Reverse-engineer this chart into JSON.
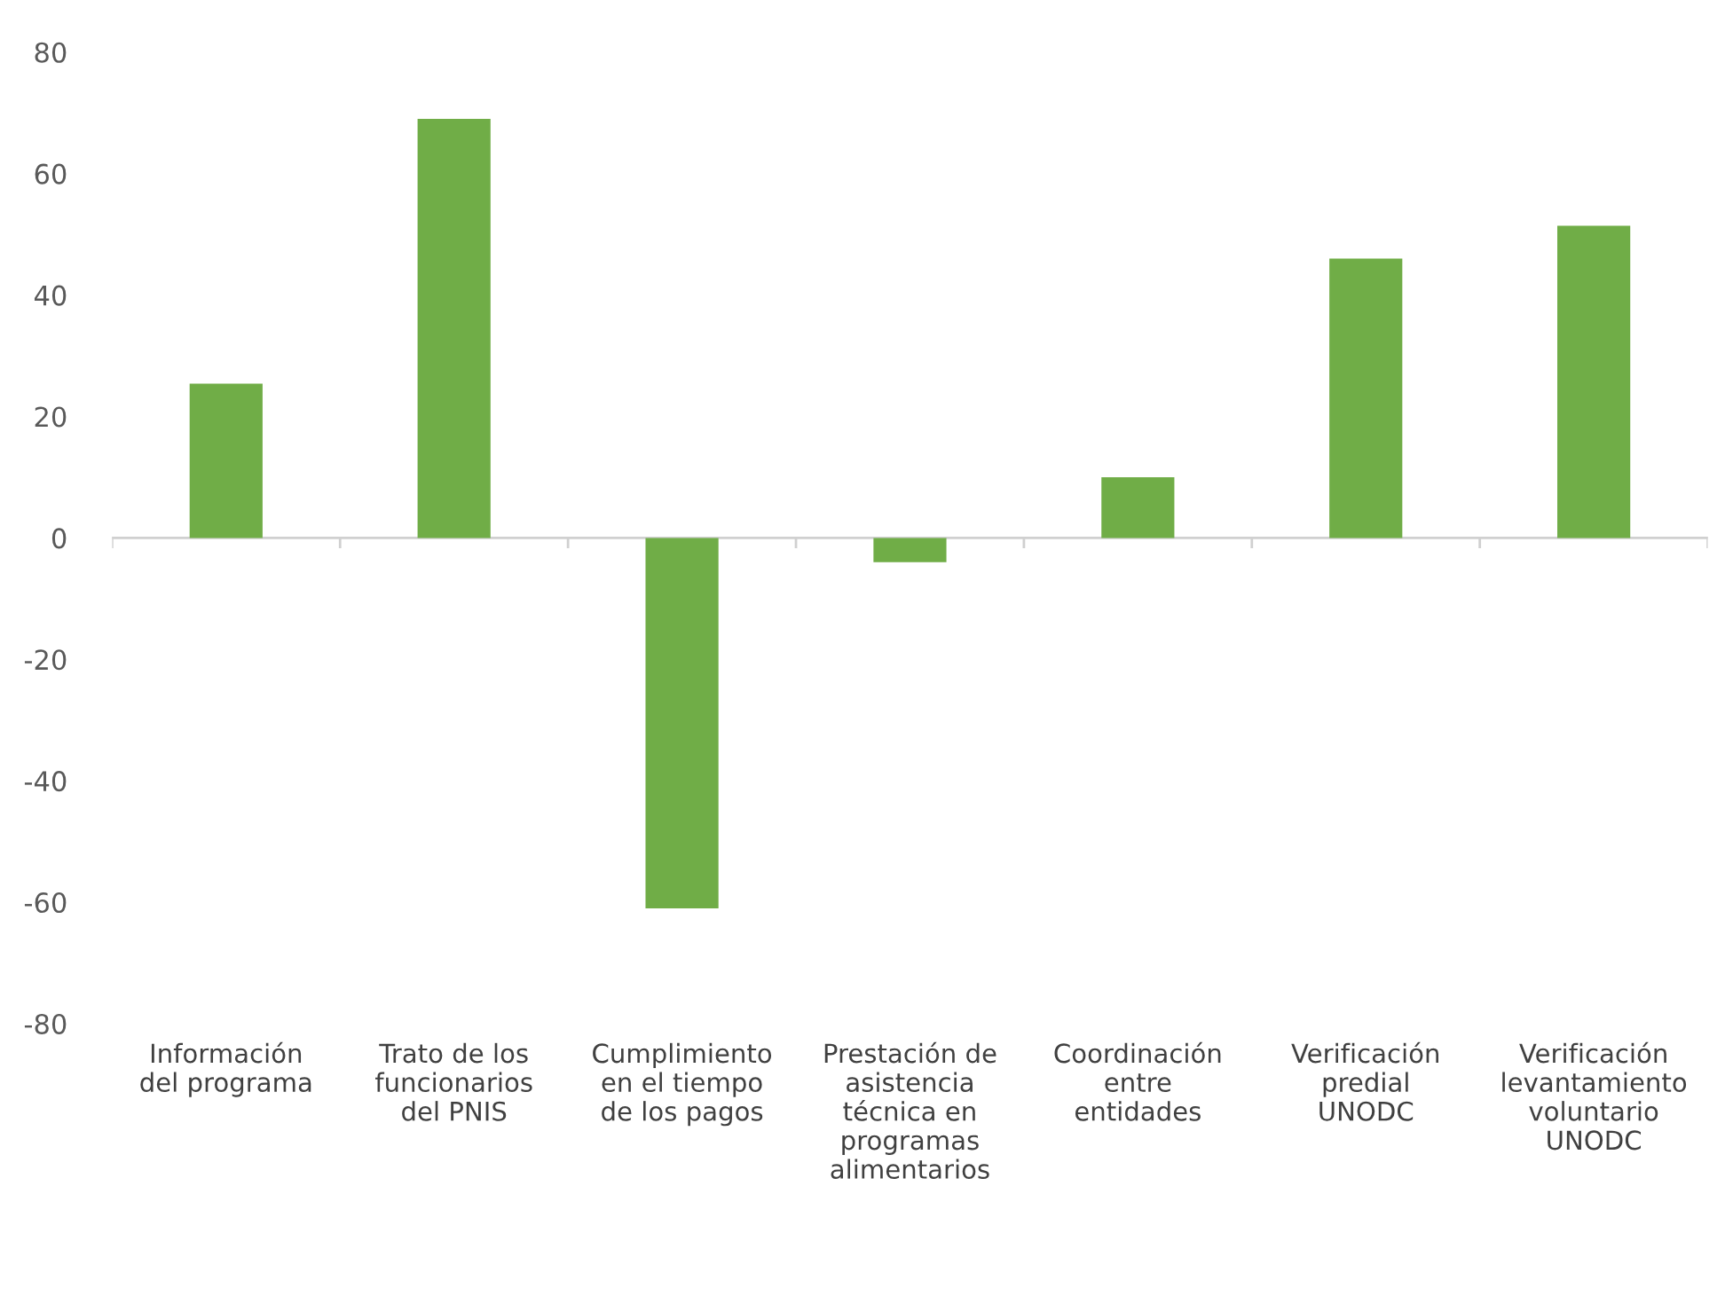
{
  "chart_data": {
    "type": "bar",
    "categories": [
      "Información\ndel programa",
      "Trato de los\nfuncionarios\ndel PNIS",
      "Cumplimiento\nen el tiempo\nde los pagos",
      "Prestación de\nasistencia\ntécnica en\nprogramas\nalimentarios",
      "Coordinación\nentre\nentidades",
      "Verificación\npredial\nUNODC",
      "Verificación\nlevantamiento\nvoluntario\nUNODC"
    ],
    "values": [
      25.4,
      69,
      -61,
      -4,
      10,
      46,
      51.4
    ],
    "color": "#70ad47",
    "ylim": [
      -80,
      80
    ],
    "yticks": [
      -80,
      -60,
      -40,
      -20,
      0,
      20,
      40,
      60,
      80
    ],
    "ref_lines": [
      {
        "axis": "y",
        "value": 0,
        "color": "#d0d0d0"
      }
    ],
    "grid": false
  }
}
